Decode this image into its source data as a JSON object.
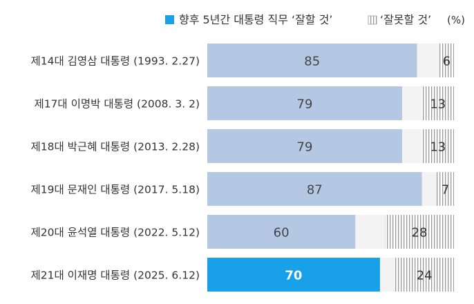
{
  "legend": {
    "good_label": "향후 5년간 대통령 직무 ‘잘할 것’",
    "bad_label": "‘잘못할 것’",
    "unit": "(%)"
  },
  "colors": {
    "good_bar": "#b4c8e4",
    "good_bar_highlight": "#18a1e9",
    "bad_stripe": "#9a9a9a",
    "gap": "#f3f3f3",
    "label_text": "#333333",
    "value_text": "#444444"
  },
  "chart_data": {
    "type": "bar",
    "orientation": "horizontal",
    "stacked": true,
    "categories": [
      "제14대 김영삼 대통령 (1993. 2.27)",
      "제17대 이명박 대통령 (2008. 3. 2)",
      "제18대 박근혜 대통령 (2013. 2.28)",
      "제19대 문재인 대통령 (2017. 5.18)",
      "제20대 윤석열 대통령 (2022. 5.12)",
      "제21대 이재명 대통령 (2025. 6.12)"
    ],
    "series": [
      {
        "name": "향후 5년간 대통령 직무 ‘잘할 것’",
        "values": [
          85,
          79,
          79,
          87,
          60,
          70
        ]
      },
      {
        "name": "‘잘못할 것’",
        "values": [
          6,
          13,
          13,
          7,
          28,
          24
        ]
      }
    ],
    "highlight_index": 5,
    "xlim": [
      0,
      100
    ],
    "unit": "%",
    "legend_position": "top-right",
    "grid": false
  }
}
